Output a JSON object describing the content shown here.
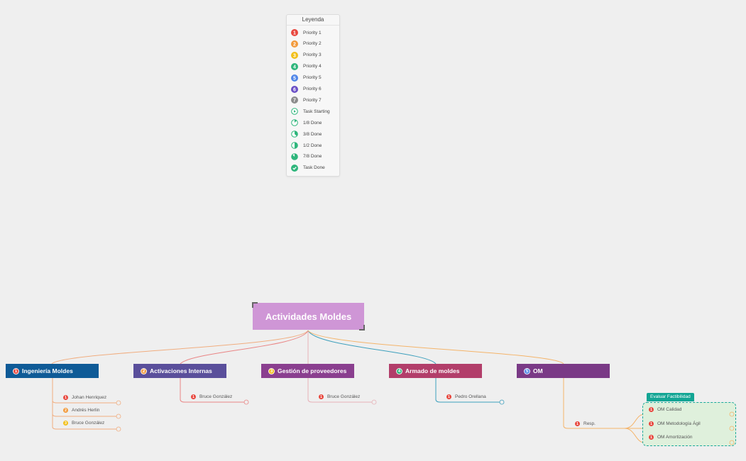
{
  "legend": {
    "title": "Leyenda",
    "items": [
      {
        "label": "Priority 1",
        "icon": "priority-1-icon",
        "color": "#e8483f",
        "kind": "num",
        "n": "1"
      },
      {
        "label": "Priority 2",
        "icon": "priority-2-icon",
        "color": "#f29a3c",
        "kind": "num",
        "n": "2"
      },
      {
        "label": "Priority 3",
        "icon": "priority-3-icon",
        "color": "#f2c01b",
        "kind": "num",
        "n": "3"
      },
      {
        "label": "Priority 4",
        "icon": "priority-4-icon",
        "color": "#2fb67c",
        "kind": "num",
        "n": "4"
      },
      {
        "label": "Priority 5",
        "icon": "priority-5-icon",
        "color": "#4f86e8",
        "kind": "num",
        "n": "5"
      },
      {
        "label": "Priority 6",
        "icon": "priority-6-icon",
        "color": "#6a4fc6",
        "kind": "num",
        "n": "6"
      },
      {
        "label": "Priority 7",
        "icon": "priority-7-icon",
        "color": "#8c8c8c",
        "kind": "num",
        "n": "7"
      },
      {
        "label": "Task Starting",
        "icon": "task-starting-icon",
        "color": "#2fb67c",
        "kind": "play"
      },
      {
        "label": "1/8 Done",
        "icon": "progress-1-8-icon",
        "color": "#2fb67c",
        "kind": "pie",
        "fraction": 0.125
      },
      {
        "label": "3/8 Done",
        "icon": "progress-3-8-icon",
        "color": "#2fb67c",
        "kind": "pie",
        "fraction": 0.375
      },
      {
        "label": "1/2 Done",
        "icon": "progress-1-2-icon",
        "color": "#2fb67c",
        "kind": "pie",
        "fraction": 0.5
      },
      {
        "label": "7/8 Done",
        "icon": "progress-7-8-icon",
        "color": "#2fb67c",
        "kind": "pie",
        "fraction": 0.875
      },
      {
        "label": "Task Done",
        "icon": "task-done-icon",
        "color": "#2fb67c",
        "kind": "done"
      }
    ]
  },
  "root": {
    "label": "Actividades Moldes",
    "color": "#cf96d6"
  },
  "topics": [
    {
      "label": "Ingeniería Moldes",
      "priority": "1",
      "color": "#0f5b97",
      "badge": "#e8483f",
      "line": "#f0ad7f"
    },
    {
      "label": "Activaciones Internas",
      "priority": "2",
      "color": "#5a4f9b",
      "badge": "#f29a3c",
      "line": "#e98585"
    },
    {
      "label": "Gestión de proveedores",
      "priority": "3",
      "color": "#8a3f8f",
      "badge": "#f2c01b",
      "line": "#e7b1b7"
    },
    {
      "label": "Armado de moldes",
      "priority": "4",
      "color": "#b23e6a",
      "badge": "#2fb67c",
      "line": "#3ea0bd"
    },
    {
      "label": "OM",
      "priority": "5",
      "color": "#7a3a86",
      "badge": "#4f86e8",
      "line": "#f4b46a"
    }
  ],
  "subtopics": {
    "ingenieria": [
      {
        "label": "Johan Henriquez",
        "priority": "1",
        "color": "#e8483f"
      },
      {
        "label": "Andrés Herlin",
        "priority": "2",
        "color": "#f29a3c"
      },
      {
        "label": "Bruce González",
        "priority": "3",
        "color": "#f2c01b"
      }
    ],
    "activaciones": [
      {
        "label": "Bruce González",
        "priority": "1",
        "color": "#e8483f"
      }
    ],
    "gestion": [
      {
        "label": "Bruce González",
        "priority": "1",
        "color": "#e8483f"
      }
    ],
    "armado": [
      {
        "label": "Pedro Orellana",
        "priority": "1",
        "color": "#e8483f"
      }
    ],
    "om": [
      {
        "label": "Resp.",
        "priority": "1",
        "color": "#e8483f"
      }
    ]
  },
  "boundary": {
    "label": "Evaluar Factibilidad",
    "items": [
      {
        "label": "OM Calidad",
        "priority": "1",
        "color": "#e8483f"
      },
      {
        "label": "OM Metodología Ágil",
        "priority": "1",
        "color": "#e8483f"
      },
      {
        "label": "OM Amortización",
        "priority": "1",
        "color": "#e8483f"
      }
    ]
  }
}
